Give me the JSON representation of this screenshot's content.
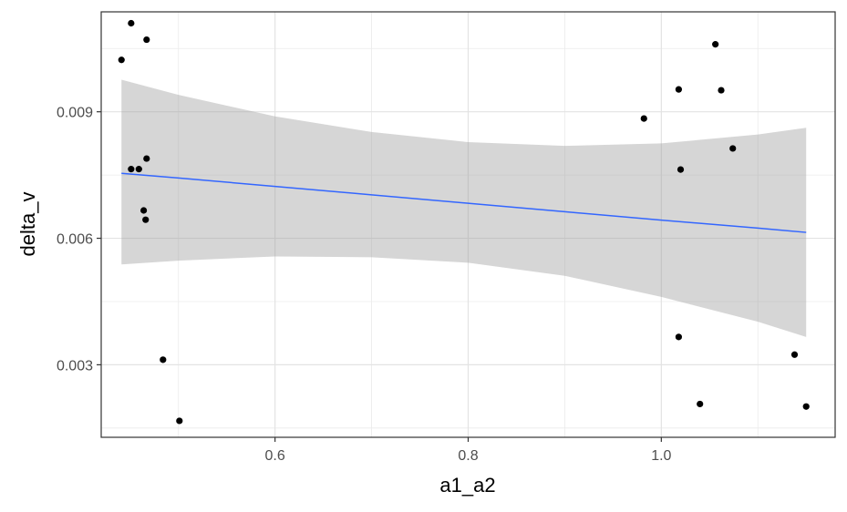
{
  "chart_data": {
    "type": "scatter",
    "title": "",
    "xlabel": "a1_a2",
    "ylabel": "delta_v",
    "xlim": [
      0.42,
      1.18
    ],
    "ylim": [
      0.00128,
      0.01137
    ],
    "x_ticks": [
      {
        "value": 0.6,
        "label": "0.6"
      },
      {
        "value": 0.8,
        "label": "0.8"
      },
      {
        "value": 1.0,
        "label": "1.0"
      }
    ],
    "y_ticks": [
      {
        "value": 0.003,
        "label": "0.003"
      },
      {
        "value": 0.006,
        "label": "0.006"
      },
      {
        "value": 0.009,
        "label": "0.009"
      }
    ],
    "grid": true,
    "theme": "bw",
    "point_color": "#000000",
    "line_color": "#3366ff",
    "band_color": "#999999",
    "points": [
      {
        "x": 0.441,
        "y": 0.01023
      },
      {
        "x": 0.451,
        "y": 0.0111
      },
      {
        "x": 0.467,
        "y": 0.01071
      },
      {
        "x": 0.451,
        "y": 0.00764
      },
      {
        "x": 0.459,
        "y": 0.00764
      },
      {
        "x": 0.467,
        "y": 0.00789
      },
      {
        "x": 0.464,
        "y": 0.00666
      },
      {
        "x": 0.466,
        "y": 0.00644
      },
      {
        "x": 0.484,
        "y": 0.00312
      },
      {
        "x": 0.501,
        "y": 0.00167
      },
      {
        "x": 0.982,
        "y": 0.00884
      },
      {
        "x": 1.018,
        "y": 0.00953
      },
      {
        "x": 1.02,
        "y": 0.00763
      },
      {
        "x": 1.018,
        "y": 0.00366
      },
      {
        "x": 1.04,
        "y": 0.00207
      },
      {
        "x": 1.056,
        "y": 0.0106
      },
      {
        "x": 1.062,
        "y": 0.00951
      },
      {
        "x": 1.074,
        "y": 0.00813
      },
      {
        "x": 1.138,
        "y": 0.00324
      },
      {
        "x": 1.15,
        "y": 0.00201
      }
    ],
    "smooth": {
      "method": "lm",
      "x": [
        0.441,
        0.5,
        0.6,
        0.7,
        0.8,
        0.9,
        1.0,
        1.1,
        1.15
      ],
      "fit": [
        0.00754,
        0.00743,
        0.00723,
        0.00703,
        0.00683,
        0.00663,
        0.00643,
        0.00624,
        0.00614
      ],
      "lower": [
        0.00538,
        0.00547,
        0.00557,
        0.00555,
        0.00542,
        0.00511,
        0.00461,
        0.00402,
        0.00366
      ],
      "upper": [
        0.00976,
        0.0094,
        0.00889,
        0.00852,
        0.00828,
        0.00819,
        0.00825,
        0.00846,
        0.00862
      ]
    }
  }
}
